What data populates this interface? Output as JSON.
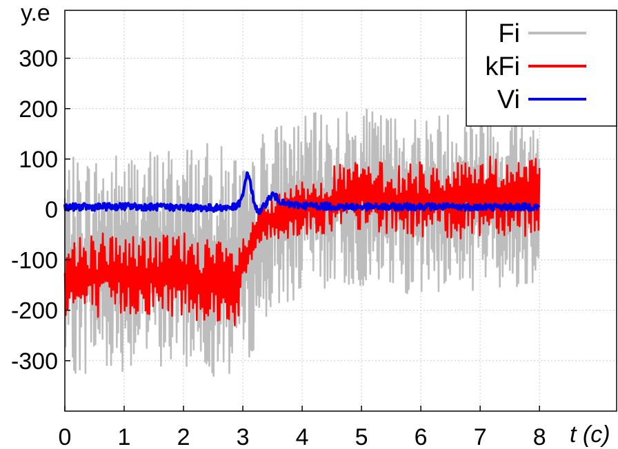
{
  "chart_data": {
    "type": "line",
    "xlabel": "t (c)",
    "ylabel": "y.e",
    "xlim": [
      0,
      9.3
    ],
    "ylim": [
      -400,
      395
    ],
    "x_ticks": [
      "0",
      "1",
      "2",
      "3",
      "4",
      "5",
      "6",
      "7",
      "8"
    ],
    "y_ticks": [
      "300",
      "200",
      "100",
      "0",
      "-100",
      "-200",
      "-300"
    ],
    "grid": true,
    "legend_position": "top-right",
    "colors": {
      "Fi": "#bdbdbd",
      "kFi": "#ff0000",
      "Vi": "#0000e6"
    },
    "series": [
      {
        "name": "Fi",
        "x": [
          0,
          0.5,
          1,
          1.5,
          2,
          2.5,
          2.9,
          3.1,
          3.3,
          3.6,
          4,
          4.5,
          5,
          5.5,
          6,
          6.5,
          7,
          7.5,
          8
        ],
        "upper": [
          100,
          115,
          120,
          125,
          140,
          130,
          125,
          70,
          160,
          175,
          185,
          200,
          200,
          195,
          190,
          200,
          215,
          200,
          190
        ],
        "lower": [
          -330,
          -330,
          -320,
          -320,
          -320,
          -330,
          -340,
          -300,
          -250,
          -200,
          -170,
          -160,
          -155,
          -165,
          -170,
          -165,
          -160,
          -160,
          -150
        ]
      },
      {
        "name": "kFi",
        "x": [
          0,
          0.5,
          1,
          1.5,
          2,
          2.5,
          2.9,
          3.1,
          3.3,
          3.6,
          4,
          4.5,
          5,
          5.5,
          6,
          6.5,
          7,
          7.5,
          8
        ],
        "upper": [
          -60,
          -40,
          -45,
          -50,
          -40,
          -60,
          -70,
          -40,
          10,
          30,
          60,
          85,
          100,
          90,
          95,
          100,
          110,
          105,
          100
        ],
        "lower": [
          -210,
          -220,
          -215,
          -210,
          -215,
          -225,
          -235,
          -120,
          -70,
          -60,
          -55,
          -50,
          -45,
          -50,
          -55,
          -60,
          -55,
          -50,
          -55
        ]
      },
      {
        "name": "Vi",
        "x": [
          0,
          0.5,
          1,
          1.5,
          2,
          2.5,
          2.9,
          3.0,
          3.05,
          3.1,
          3.2,
          3.3,
          3.4,
          3.5,
          3.7,
          4,
          4.5,
          5,
          5.5,
          6,
          6.5,
          7,
          7.5,
          8
        ],
        "values": [
          5,
          5,
          6,
          5,
          4,
          3,
          5,
          25,
          65,
          70,
          5,
          -5,
          15,
          30,
          10,
          8,
          6,
          5,
          5,
          6,
          5,
          5,
          5,
          5
        ]
      }
    ]
  }
}
